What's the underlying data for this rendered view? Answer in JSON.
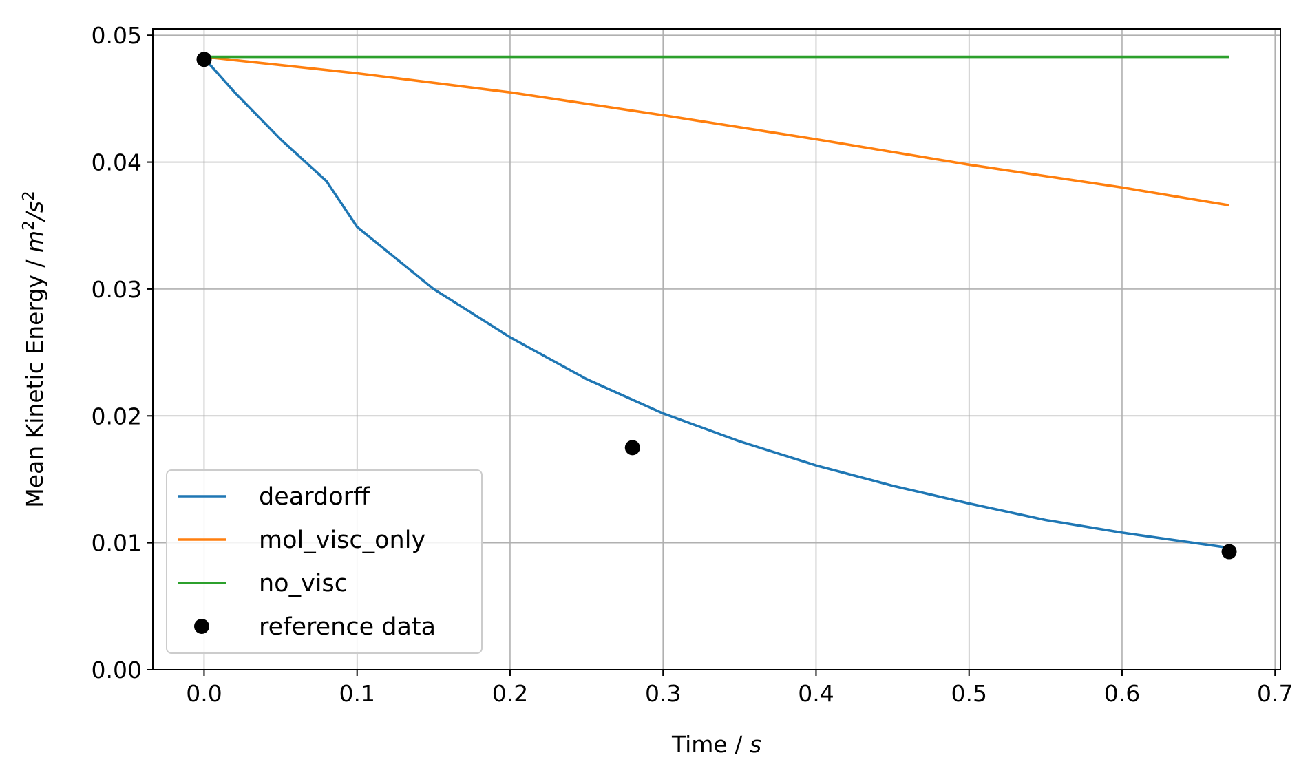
{
  "chart_data": {
    "type": "line",
    "title": "",
    "xlabel": {
      "text": "Time / ",
      "unit": "s"
    },
    "ylabel": {
      "text": "Mean Kinetic Energy / ",
      "unit": "m",
      "unit_sup": "2",
      "unit_sep": "/",
      "unit2": "s",
      "unit2_sup": "2"
    },
    "xlim": [
      -0.0335,
      0.7035
    ],
    "ylim": [
      0.0,
      0.0505
    ],
    "xticks": [
      0.0,
      0.1,
      0.2,
      0.3,
      0.4,
      0.5,
      0.6,
      0.7
    ],
    "xtick_labels": [
      "0.0",
      "0.1",
      "0.2",
      "0.3",
      "0.4",
      "0.5",
      "0.6",
      "0.7"
    ],
    "yticks": [
      0.0,
      0.01,
      0.02,
      0.03,
      0.04,
      0.05
    ],
    "ytick_labels": [
      "0.00",
      "0.01",
      "0.02",
      "0.03",
      "0.04",
      "0.05"
    ],
    "grid": true,
    "legend_position": "lower-left",
    "series": [
      {
        "name": "deardorff",
        "kind": "line",
        "color": "#1f77b4",
        "x": [
          0.0,
          0.02,
          0.05,
          0.08,
          0.1,
          0.15,
          0.2,
          0.25,
          0.3,
          0.35,
          0.4,
          0.45,
          0.5,
          0.55,
          0.6,
          0.67
        ],
        "y": [
          0.0482,
          0.0455,
          0.0418,
          0.0385,
          0.0349,
          0.03,
          0.0262,
          0.0229,
          0.0202,
          0.018,
          0.0161,
          0.0145,
          0.0131,
          0.0118,
          0.0108,
          0.0096
        ]
      },
      {
        "name": "mol_visc_only",
        "kind": "line",
        "color": "#ff7f0e",
        "x": [
          0.0,
          0.1,
          0.2,
          0.3,
          0.4,
          0.5,
          0.6,
          0.67
        ],
        "y": [
          0.0483,
          0.047,
          0.0455,
          0.0437,
          0.0418,
          0.0398,
          0.038,
          0.0366
        ]
      },
      {
        "name": "no_visc",
        "kind": "line",
        "color": "#2ca02c",
        "x": [
          0.0,
          0.67
        ],
        "y": [
          0.0483,
          0.0483
        ]
      },
      {
        "name": "reference data",
        "kind": "scatter",
        "color": "#000000",
        "x": [
          0.0,
          0.28,
          0.67
        ],
        "y": [
          0.0481,
          0.0175,
          0.0093
        ]
      }
    ]
  }
}
